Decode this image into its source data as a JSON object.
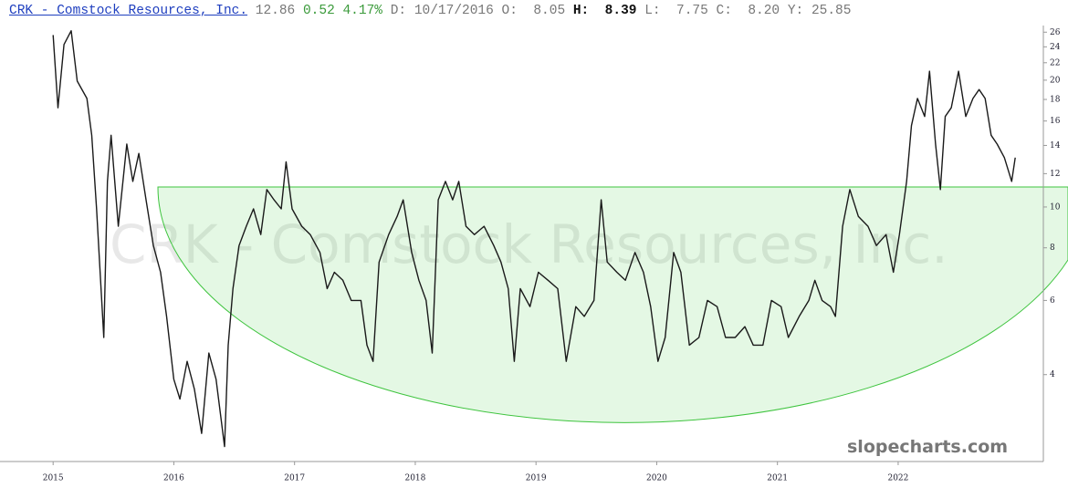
{
  "header": {
    "title": "CRK - Comstock Resources, Inc.",
    "last": "12.86",
    "change": "0.52",
    "change_pct": "4.17%",
    "date_label": "D:",
    "date": "10/17/2016",
    "open_label": "O:",
    "open": "8.05",
    "high_label": "H:",
    "high": "8.39",
    "low_label": "L:",
    "low": "7.75",
    "close_label": "C:",
    "close": "8.20",
    "y_label": "Y:",
    "y_value": "25.85"
  },
  "brand": "slopecharts.com",
  "chart_data": {
    "type": "line",
    "log_scale": true,
    "grid": false,
    "color": "#1a1a1a",
    "xlim": [
      2014.56,
      2023.18
    ],
    "xticks": [
      2015,
      2016,
      2017,
      2018,
      2019,
      2020,
      2021,
      2022
    ],
    "ylim": [
      2.5,
      31
    ],
    "yticks": [
      4,
      6,
      8,
      10,
      12,
      14,
      16,
      18,
      20,
      22,
      24,
      26
    ],
    "x": [
      2015.0,
      2015.04,
      2015.09,
      2015.15,
      2015.2,
      2015.28,
      2015.32,
      2015.36,
      2015.42,
      2015.45,
      2015.48,
      2015.54,
      2015.61,
      2015.66,
      2015.71,
      2015.77,
      2015.83,
      2015.89,
      2015.94,
      2016.0,
      2016.05,
      2016.11,
      2016.17,
      2016.23,
      2016.29,
      2016.35,
      2016.42,
      2016.45,
      2016.49,
      2016.54,
      2016.6,
      2016.66,
      2016.72,
      2016.77,
      2016.83,
      2016.89,
      2016.93,
      2016.98,
      2017.06,
      2017.13,
      2017.21,
      2017.27,
      2017.33,
      2017.4,
      2017.47,
      2017.55,
      2017.6,
      2017.65,
      2017.7,
      2017.78,
      2017.85,
      2017.9,
      2017.97,
      2018.03,
      2018.09,
      2018.14,
      2018.19,
      2018.25,
      2018.31,
      2018.36,
      2018.42,
      2018.49,
      2018.57,
      2018.65,
      2018.71,
      2018.77,
      2018.82,
      2018.87,
      2018.95,
      2019.02,
      2019.1,
      2019.18,
      2019.25,
      2019.33,
      2019.4,
      2019.48,
      2019.54,
      2019.59,
      2019.67,
      2019.74,
      2019.82,
      2019.89,
      2019.95,
      2020.01,
      2020.07,
      2020.14,
      2020.2,
      2020.27,
      2020.35,
      2020.42,
      2020.5,
      2020.57,
      2020.65,
      2020.73,
      2020.8,
      2020.88,
      2020.95,
      2021.03,
      2021.09,
      2021.18,
      2021.26,
      2021.31,
      2021.37,
      2021.44,
      2021.48,
      2021.54,
      2021.6,
      2021.67,
      2021.75,
      2021.82,
      2021.9,
      2021.96,
      2022.01,
      2022.07,
      2022.11,
      2022.16,
      2022.22,
      2022.26,
      2022.31,
      2022.35,
      2022.39,
      2022.44,
      2022.5,
      2022.56,
      2022.62,
      2022.67,
      2022.72,
      2022.77,
      2022.82,
      2022.88,
      2022.94,
      2022.97
    ],
    "values": [
      25.6,
      17.2,
      24.3,
      26.2,
      19.9,
      18.1,
      14.8,
      9.9,
      4.9,
      11.5,
      14.8,
      9.0,
      14.1,
      11.5,
      13.4,
      10.4,
      8.1,
      7.0,
      5.5,
      3.9,
      3.5,
      4.3,
      3.7,
      2.9,
      4.5,
      3.9,
      2.7,
      4.7,
      6.4,
      8.1,
      9.0,
      9.9,
      8.6,
      11.0,
      10.4,
      9.9,
      12.8,
      9.9,
      9.0,
      8.6,
      7.8,
      6.4,
      7.0,
      6.7,
      6.0,
      6.0,
      4.7,
      4.3,
      7.4,
      8.6,
      9.5,
      10.4,
      7.8,
      6.7,
      6.0,
      4.5,
      10.4,
      11.5,
      10.4,
      11.5,
      9.0,
      8.6,
      9.0,
      8.1,
      7.4,
      6.4,
      4.3,
      6.4,
      5.8,
      7.0,
      6.7,
      6.4,
      4.3,
      5.8,
      5.5,
      6.0,
      10.4,
      7.4,
      7.0,
      6.7,
      7.8,
      7.0,
      5.8,
      4.3,
      4.9,
      7.8,
      7.0,
      4.7,
      4.9,
      6.0,
      5.8,
      4.9,
      4.9,
      5.2,
      4.7,
      4.7,
      6.0,
      5.8,
      4.9,
      5.5,
      6.0,
      6.7,
      6.0,
      5.8,
      5.5,
      9.0,
      11.0,
      9.5,
      9.0,
      8.1,
      8.6,
      7.0,
      8.6,
      11.5,
      15.6,
      18.1,
      16.4,
      21.0,
      14.1,
      11.0,
      16.4,
      17.2,
      21.0,
      16.4,
      18.1,
      19.0,
      18.1,
      14.8,
      14.1,
      13.1,
      11.5,
      13.1
    ]
  }
}
